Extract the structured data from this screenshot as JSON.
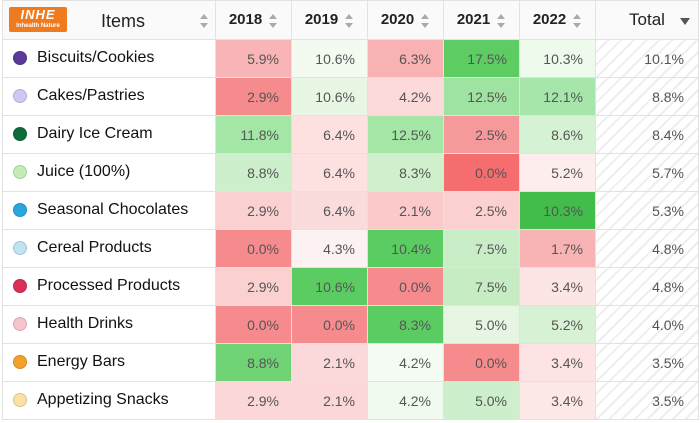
{
  "logo": {
    "main": "INHE",
    "sub": "Inhealth Nature",
    "color": "#f07a1e"
  },
  "header": {
    "items_label": "Items",
    "years": [
      "2018",
      "2019",
      "2020",
      "2021",
      "2022"
    ],
    "total_label": "Total"
  },
  "rows": [
    {
      "item": "Biscuits/Cookies",
      "dot_color": "#5b3a99",
      "values": [
        "5.9%",
        "10.6%",
        "6.3%",
        "17.5%",
        "10.3%"
      ],
      "total": "10.1%"
    },
    {
      "item": "Cakes/Pastries",
      "dot_color": "#cfc8f2",
      "values": [
        "2.9%",
        "10.6%",
        "4.2%",
        "12.5%",
        "12.1%"
      ],
      "total": "8.8%"
    },
    {
      "item": "Dairy Ice Cream",
      "dot_color": "#0f6b3a",
      "values": [
        "11.8%",
        "6.4%",
        "12.5%",
        "2.5%",
        "8.6%"
      ],
      "total": "8.4%"
    },
    {
      "item": "Juice (100%)",
      "dot_color": "#c4ecb6",
      "values": [
        "8.8%",
        "6.4%",
        "8.3%",
        "0.0%",
        "5.2%"
      ],
      "total": "5.7%"
    },
    {
      "item": "Seasonal Chocolates",
      "dot_color": "#2aa6de",
      "values": [
        "2.9%",
        "6.4%",
        "2.1%",
        "2.5%",
        "10.3%"
      ],
      "total": "5.3%"
    },
    {
      "item": "Cereal Products",
      "dot_color": "#bfe4f0",
      "values": [
        "0.0%",
        "4.3%",
        "10.4%",
        "7.5%",
        "1.7%"
      ],
      "total": "4.8%"
    },
    {
      "item": "Processed Products",
      "dot_color": "#d92f58",
      "values": [
        "2.9%",
        "10.6%",
        "0.0%",
        "7.5%",
        "3.4%"
      ],
      "total": "4.8%"
    },
    {
      "item": "Health Drinks",
      "dot_color": "#f7c3cc",
      "values": [
        "0.0%",
        "0.0%",
        "8.3%",
        "5.0%",
        "5.2%"
      ],
      "total": "4.0%"
    },
    {
      "item": "Energy Bars",
      "dot_color": "#f2a12a",
      "values": [
        "8.8%",
        "2.1%",
        "4.2%",
        "0.0%",
        "3.4%"
      ],
      "total": "3.5%"
    },
    {
      "item": "Appetizing Snacks",
      "dot_color": "#f9e2a2",
      "values": [
        "2.9%",
        "2.1%",
        "4.2%",
        "5.0%",
        "3.4%"
      ],
      "total": "3.5%"
    }
  ],
  "cell_colors": [
    [
      "#f8b4b6",
      "#f3fbf1",
      "#f8b2b4",
      "#5dcc63",
      "#eefaeb"
    ],
    [
      "#f68b8d",
      "#e7f7e4",
      "#fcdada",
      "#9ee3a1",
      "#a7e6aa"
    ],
    [
      "#a4e6a6",
      "#fde1e1",
      "#a4e6a6",
      "#f6999a",
      "#d6f2d4"
    ],
    [
      "#cdefcb",
      "#fde0e0",
      "#cfefcd",
      "#f56d6f",
      "#fdeded"
    ],
    [
      "#fbd0d1",
      "#fbdcdc",
      "#fbc9ca",
      "#fbd0d1",
      "#42bd4b"
    ],
    [
      "#f68b8d",
      "#fdf2f2",
      "#5bcc62",
      "#c9eec7",
      "#f8b3b4"
    ],
    [
      "#fad0d1",
      "#5bcc62",
      "#f68b8d",
      "#c6ecc4",
      "#fde5e5"
    ],
    [
      "#f68b8d",
      "#f68b8d",
      "#5bcc62",
      "#e6f6e3",
      "#d6f1d3"
    ],
    [
      "#6fd275",
      "#fbd8d9",
      "#f4fbf2",
      "#f68b8d",
      "#fde3e3"
    ],
    [
      "#fbd7d8",
      "#fbd7d8",
      "#f0faee",
      "#cdefcb",
      "#fde8e8"
    ]
  ]
}
